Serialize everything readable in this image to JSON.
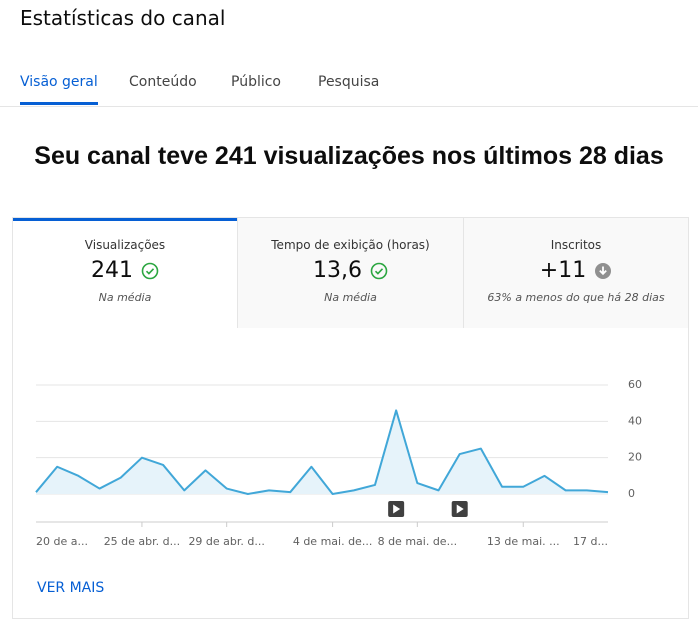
{
  "header": {
    "title": "Estatísticas do canal"
  },
  "tabs": [
    "Visão geral",
    "Conteúdo",
    "Público",
    "Pesquisa"
  ],
  "headline": "Seu canal teve 241 visualizações nos últimos 28 dias",
  "metrics": [
    {
      "label": "Visualizações",
      "value": "241",
      "note": "Na média"
    },
    {
      "label": "Tempo de exibição (horas)",
      "value": "13,6",
      "note": "Na média"
    },
    {
      "label": "Inscritos",
      "value": "+11",
      "note": "63% a menos do que há 28 dias"
    }
  ],
  "chart_data": {
    "type": "line",
    "color": "#41a7d8",
    "fill": "#e6f3fa",
    "categories": [
      "20 de a...",
      null,
      null,
      null,
      null,
      "25 de abr. d...",
      null,
      null,
      null,
      "29 de abr. d...",
      null,
      null,
      null,
      null,
      "4 de mai. de...",
      null,
      null,
      null,
      "8 de mai. de...",
      null,
      null,
      null,
      null,
      "13 de mai. ...",
      null,
      null,
      null,
      "17 d..."
    ],
    "values": [
      1,
      15,
      10,
      3,
      9,
      20,
      16,
      2,
      13,
      3,
      0,
      2,
      1,
      15,
      0,
      2,
      5,
      46,
      6,
      2,
      22,
      25,
      4,
      4,
      10,
      2,
      2,
      1
    ],
    "ylim": [
      0,
      60
    ],
    "yticks": [
      0,
      20,
      40,
      60
    ],
    "grid": true
  },
  "link": "VER MAIS"
}
